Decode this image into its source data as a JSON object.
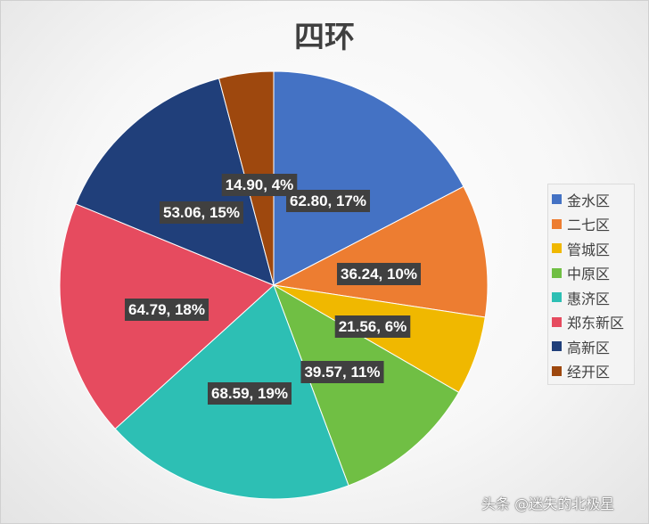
{
  "chart_data": {
    "type": "pie",
    "title": "四环",
    "legend_position": "right",
    "slices": [
      {
        "name": "金水区",
        "value": 62.8,
        "percent": "17%",
        "label": "62.80, 17%",
        "color": "#4472C4"
      },
      {
        "name": "二七区",
        "value": 36.24,
        "percent": "10%",
        "label": "36.24, 10%",
        "color": "#ED7D31"
      },
      {
        "name": "管城区",
        "value": 21.56,
        "percent": "6%",
        "label": "21.56, 6%",
        "color": "#F0B800"
      },
      {
        "name": "中原区",
        "value": 39.57,
        "percent": "11%",
        "label": "39.57, 11%",
        "color": "#70BF44"
      },
      {
        "name": "惠济区",
        "value": 68.59,
        "percent": "19%",
        "label": "68.59, 19%",
        "color": "#2DBFB4"
      },
      {
        "name": "郑东新区",
        "value": 64.79,
        "percent": "18%",
        "label": "64.79, 18%",
        "color": "#E64B5F"
      },
      {
        "name": "高新区",
        "value": 53.06,
        "percent": "15%",
        "label": "53.06, 15%",
        "color": "#203F7A"
      },
      {
        "name": "经开区",
        "value": 14.9,
        "percent": "4%",
        "label": "14.90, 4%",
        "color": "#9E480E"
      }
    ]
  },
  "watermark": "头条 @迷失的北极星"
}
